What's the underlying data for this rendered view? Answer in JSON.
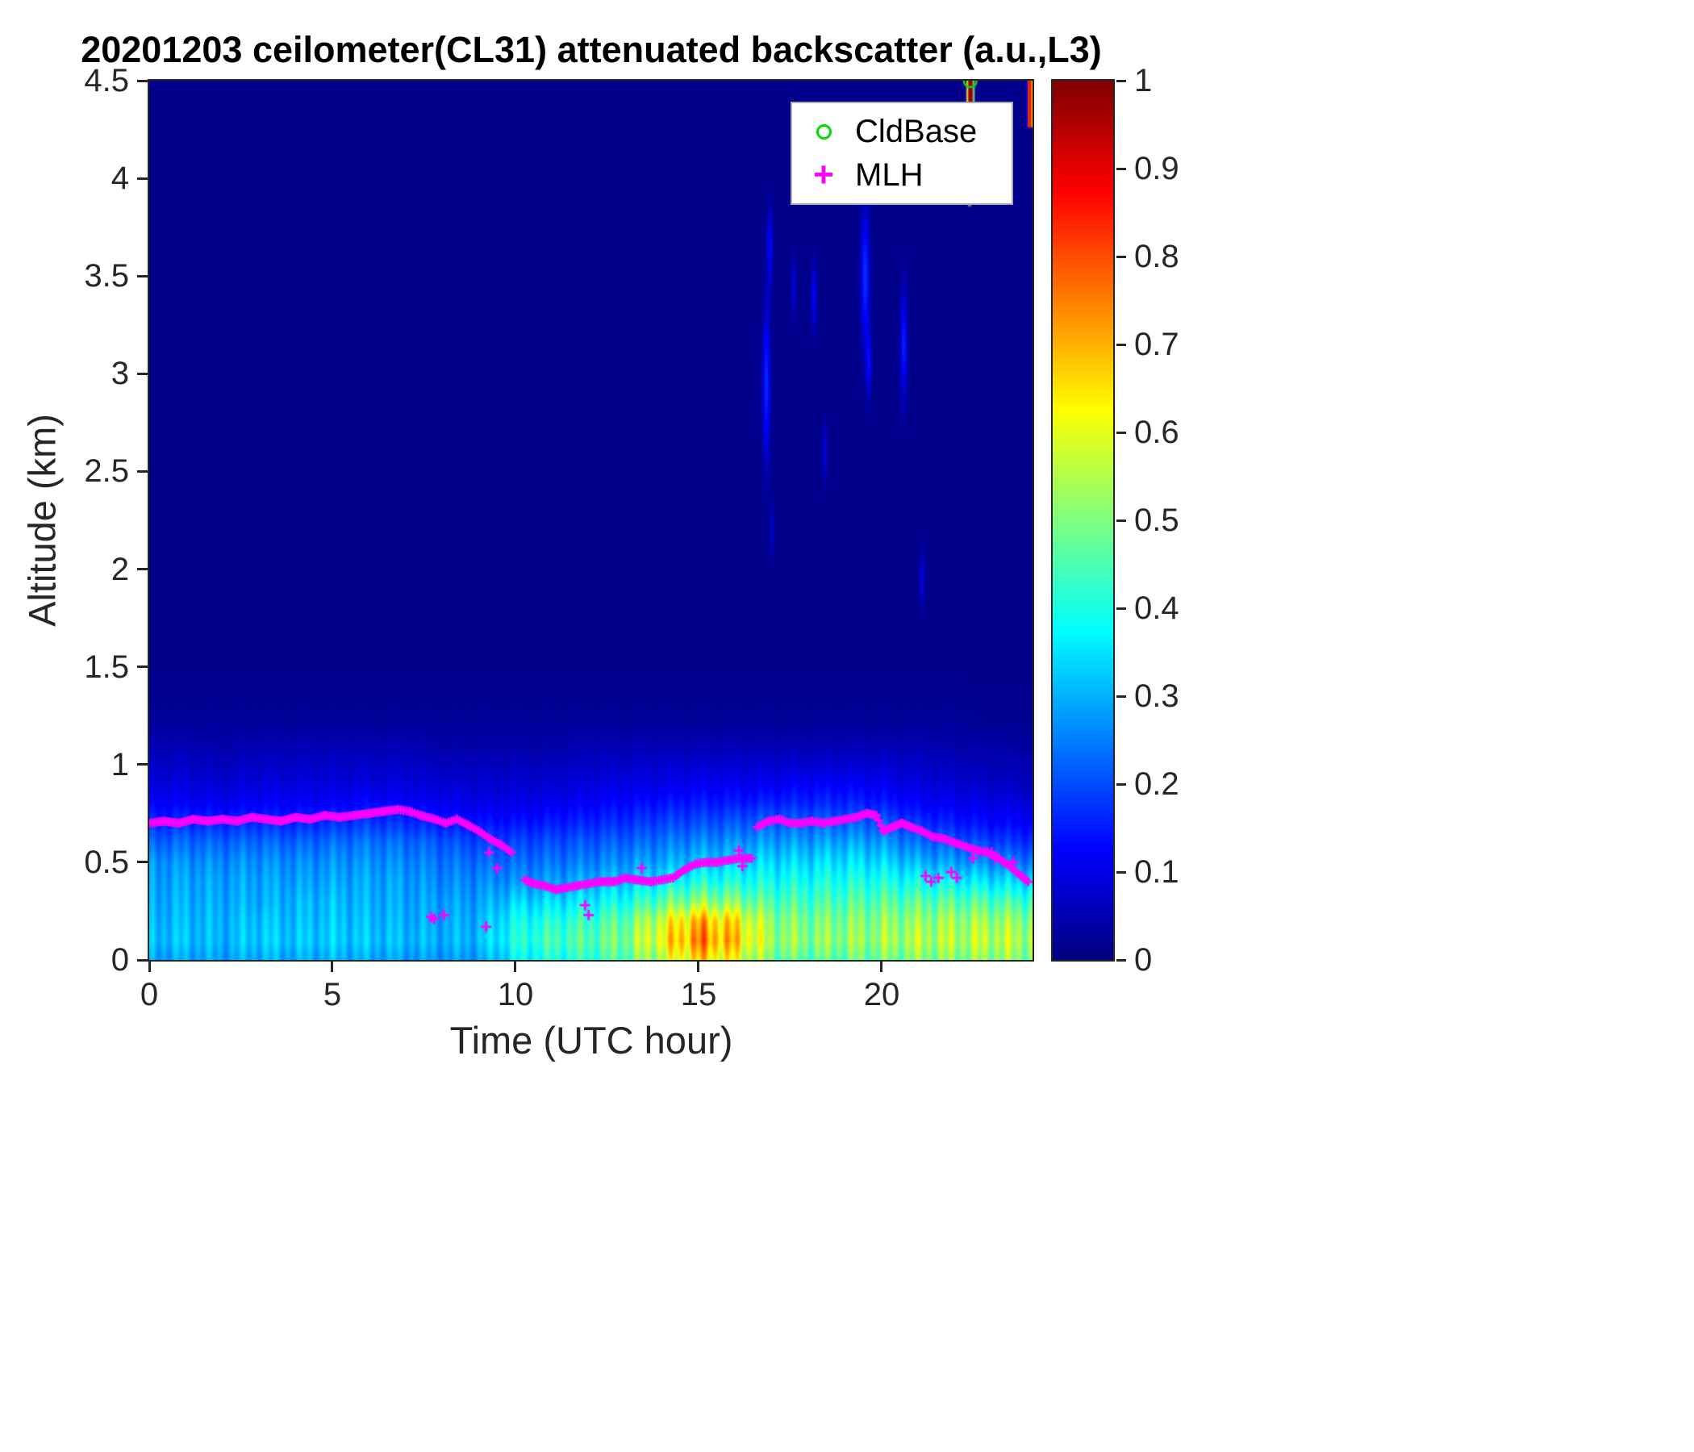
{
  "legend": {
    "items": [
      {
        "label": "CldBase",
        "marker": "circle",
        "color": "#00dd00"
      },
      {
        "label": "MLH",
        "marker": "plus",
        "glyph": "+",
        "color": "#ff00ff"
      }
    ]
  },
  "chart_data": {
    "type": "heatmap",
    "title": "20201203 ceilometer(CL31) attenuated backscatter (a.u.,L3)",
    "xlabel": "Time (UTC hour)",
    "ylabel": "Altitude (km)",
    "x_range": [
      0,
      24.12
    ],
    "y_range": [
      0,
      4.5
    ],
    "x_ticks": [
      0,
      5,
      10,
      15,
      20
    ],
    "y_ticks": [
      0,
      0.5,
      1,
      1.5,
      2,
      2.5,
      3,
      3.5,
      4,
      4.5
    ],
    "colorbar": {
      "range": [
        0,
        1
      ],
      "ticks": [
        0,
        0.1,
        0.2,
        0.3,
        0.4,
        0.5,
        0.6,
        0.7,
        0.8,
        0.9,
        1
      ],
      "colormap": "jet",
      "position": "right"
    },
    "background_value": 0.01,
    "boundary_layer": {
      "time_points": [
        0,
        1,
        2,
        3,
        4,
        5,
        6,
        7,
        8,
        9,
        10,
        11,
        12,
        13,
        14,
        15,
        16,
        17,
        18,
        19,
        20,
        21,
        22,
        23,
        24
      ],
      "alt_points": [
        0,
        0.1,
        0.2,
        0.3,
        0.4,
        0.5,
        0.6,
        0.7,
        0.8,
        0.9,
        1.0,
        1.1,
        1.2
      ],
      "values": [
        [
          0.28,
          0.31,
          0.3,
          0.29,
          0.28,
          0.27,
          0.22,
          0.16,
          0.12,
          0.09,
          0.07,
          0.05,
          0.03
        ],
        [
          0.29,
          0.32,
          0.31,
          0.3,
          0.29,
          0.27,
          0.23,
          0.17,
          0.12,
          0.09,
          0.07,
          0.05,
          0.03
        ],
        [
          0.28,
          0.3,
          0.3,
          0.29,
          0.28,
          0.26,
          0.22,
          0.16,
          0.11,
          0.08,
          0.06,
          0.04,
          0.03
        ],
        [
          0.3,
          0.33,
          0.32,
          0.3,
          0.29,
          0.27,
          0.23,
          0.17,
          0.12,
          0.09,
          0.07,
          0.05,
          0.03
        ],
        [
          0.29,
          0.32,
          0.31,
          0.3,
          0.28,
          0.26,
          0.22,
          0.16,
          0.12,
          0.09,
          0.07,
          0.05,
          0.03
        ],
        [
          0.3,
          0.33,
          0.32,
          0.31,
          0.29,
          0.27,
          0.23,
          0.17,
          0.12,
          0.09,
          0.07,
          0.05,
          0.03
        ],
        [
          0.29,
          0.32,
          0.31,
          0.3,
          0.29,
          0.27,
          0.24,
          0.18,
          0.13,
          0.09,
          0.07,
          0.05,
          0.03
        ],
        [
          0.28,
          0.31,
          0.3,
          0.29,
          0.28,
          0.26,
          0.23,
          0.17,
          0.12,
          0.09,
          0.07,
          0.05,
          0.03
        ],
        [
          0.27,
          0.3,
          0.29,
          0.28,
          0.26,
          0.24,
          0.21,
          0.15,
          0.11,
          0.08,
          0.06,
          0.04,
          0.03
        ],
        [
          0.28,
          0.31,
          0.3,
          0.28,
          0.26,
          0.23,
          0.19,
          0.14,
          0.1,
          0.08,
          0.06,
          0.04,
          0.03
        ],
        [
          0.36,
          0.4,
          0.38,
          0.33,
          0.27,
          0.23,
          0.19,
          0.14,
          0.1,
          0.08,
          0.06,
          0.04,
          0.03
        ],
        [
          0.4,
          0.44,
          0.41,
          0.34,
          0.28,
          0.24,
          0.2,
          0.15,
          0.11,
          0.08,
          0.06,
          0.04,
          0.03
        ],
        [
          0.42,
          0.46,
          0.43,
          0.36,
          0.3,
          0.25,
          0.21,
          0.16,
          0.12,
          0.09,
          0.07,
          0.05,
          0.03
        ],
        [
          0.46,
          0.5,
          0.47,
          0.39,
          0.32,
          0.27,
          0.22,
          0.17,
          0.13,
          0.1,
          0.07,
          0.05,
          0.03
        ],
        [
          0.55,
          0.62,
          0.58,
          0.46,
          0.36,
          0.29,
          0.24,
          0.19,
          0.14,
          0.1,
          0.08,
          0.05,
          0.03
        ],
        [
          0.66,
          0.75,
          0.7,
          0.52,
          0.4,
          0.32,
          0.26,
          0.2,
          0.15,
          0.11,
          0.08,
          0.05,
          0.03
        ],
        [
          0.6,
          0.68,
          0.64,
          0.5,
          0.4,
          0.33,
          0.27,
          0.21,
          0.15,
          0.11,
          0.08,
          0.05,
          0.03
        ],
        [
          0.48,
          0.53,
          0.51,
          0.45,
          0.39,
          0.34,
          0.28,
          0.22,
          0.16,
          0.11,
          0.08,
          0.05,
          0.03
        ],
        [
          0.46,
          0.51,
          0.49,
          0.44,
          0.39,
          0.34,
          0.28,
          0.22,
          0.16,
          0.12,
          0.08,
          0.05,
          0.03
        ],
        [
          0.47,
          0.52,
          0.5,
          0.45,
          0.4,
          0.35,
          0.29,
          0.22,
          0.16,
          0.12,
          0.08,
          0.05,
          0.03
        ],
        [
          0.48,
          0.53,
          0.51,
          0.46,
          0.4,
          0.34,
          0.28,
          0.21,
          0.15,
          0.11,
          0.08,
          0.05,
          0.03
        ],
        [
          0.5,
          0.55,
          0.52,
          0.46,
          0.38,
          0.3,
          0.23,
          0.17,
          0.12,
          0.09,
          0.07,
          0.05,
          0.03
        ],
        [
          0.5,
          0.55,
          0.53,
          0.46,
          0.37,
          0.28,
          0.21,
          0.15,
          0.11,
          0.08,
          0.06,
          0.04,
          0.03
        ],
        [
          0.52,
          0.56,
          0.53,
          0.45,
          0.35,
          0.26,
          0.19,
          0.13,
          0.1,
          0.07,
          0.05,
          0.04,
          0.02
        ],
        [
          0.5,
          0.54,
          0.51,
          0.43,
          0.33,
          0.24,
          0.17,
          0.12,
          0.09,
          0.06,
          0.05,
          0.03,
          0.02
        ]
      ]
    },
    "clouds": [
      {
        "t": 16.85,
        "alt": 2.95,
        "st": 0.07,
        "sa": 0.28,
        "v": 0.16
      },
      {
        "t": 16.95,
        "alt": 3.65,
        "st": 0.05,
        "sa": 0.14,
        "v": 0.13
      },
      {
        "t": 17.6,
        "alt": 3.45,
        "st": 0.04,
        "sa": 0.1,
        "v": 0.1
      },
      {
        "t": 18.15,
        "alt": 3.4,
        "st": 0.05,
        "sa": 0.12,
        "v": 0.12
      },
      {
        "t": 18.45,
        "alt": 2.6,
        "st": 0.04,
        "sa": 0.1,
        "v": 0.1
      },
      {
        "t": 19.55,
        "alt": 3.5,
        "st": 0.08,
        "sa": 0.24,
        "v": 0.17
      },
      {
        "t": 19.65,
        "alt": 3.05,
        "st": 0.05,
        "sa": 0.12,
        "v": 0.12
      },
      {
        "t": 20.6,
        "alt": 3.15,
        "st": 0.06,
        "sa": 0.2,
        "v": 0.15
      },
      {
        "t": 21.1,
        "alt": 1.95,
        "st": 0.05,
        "sa": 0.1,
        "v": 0.09
      },
      {
        "t": 17.0,
        "alt": 2.2,
        "st": 0.04,
        "sa": 0.09,
        "v": 0.08
      }
    ],
    "plumes": [
      {
        "t": 22.42,
        "t_halfwidth": 0.1,
        "alt_range": [
          4.18,
          4.5
        ],
        "v": 1.0
      },
      {
        "t": 22.42,
        "t_halfwidth": 0.04,
        "alt_range": [
          3.86,
          3.98
        ],
        "v": 0.8
      },
      {
        "t": 24.05,
        "t_halfwidth": 0.07,
        "alt_range": [
          4.26,
          4.5
        ],
        "v": 0.9
      }
    ],
    "cldbase_points": [
      [
        22.42,
        4.5
      ]
    ],
    "mlh_segments": [
      [
        [
          0,
          0.7
        ],
        [
          0.4,
          0.71
        ],
        [
          0.8,
          0.7
        ],
        [
          1.2,
          0.72
        ],
        [
          1.6,
          0.71
        ],
        [
          2.0,
          0.72
        ],
        [
          2.4,
          0.71
        ],
        [
          2.8,
          0.73
        ],
        [
          3.2,
          0.72
        ],
        [
          3.6,
          0.71
        ],
        [
          4.0,
          0.73
        ],
        [
          4.4,
          0.72
        ],
        [
          4.8,
          0.74
        ],
        [
          5.2,
          0.73
        ],
        [
          5.6,
          0.74
        ],
        [
          6.0,
          0.75
        ],
        [
          6.4,
          0.76
        ],
        [
          6.8,
          0.77
        ],
        [
          7.1,
          0.76
        ],
        [
          7.4,
          0.74
        ],
        [
          7.8,
          0.72
        ],
        [
          8.1,
          0.7
        ],
        [
          8.4,
          0.72
        ],
        [
          8.7,
          0.69
        ],
        [
          9.0,
          0.66
        ],
        [
          9.3,
          0.62
        ],
        [
          9.6,
          0.59
        ],
        [
          9.9,
          0.55
        ]
      ],
      [
        [
          10.25,
          0.41
        ],
        [
          10.5,
          0.39
        ],
        [
          10.8,
          0.38
        ],
        [
          11.1,
          0.36
        ],
        [
          11.4,
          0.37
        ],
        [
          11.7,
          0.38
        ],
        [
          12.0,
          0.39
        ],
        [
          12.3,
          0.4
        ],
        [
          12.7,
          0.4
        ],
        [
          13.0,
          0.42
        ],
        [
          13.3,
          0.41
        ],
        [
          13.7,
          0.4
        ],
        [
          14.0,
          0.41
        ],
        [
          14.3,
          0.42
        ],
        [
          14.6,
          0.46
        ],
        [
          14.9,
          0.49
        ],
        [
          15.2,
          0.5
        ],
        [
          15.5,
          0.5
        ],
        [
          15.8,
          0.51
        ],
        [
          16.1,
          0.52
        ],
        [
          16.45,
          0.52
        ]
      ],
      [
        [
          16.6,
          0.68
        ],
        [
          16.9,
          0.71
        ],
        [
          17.2,
          0.72
        ],
        [
          17.5,
          0.7
        ],
        [
          17.8,
          0.7
        ],
        [
          18.1,
          0.71
        ],
        [
          18.4,
          0.7
        ],
        [
          18.7,
          0.71
        ],
        [
          19.0,
          0.72
        ],
        [
          19.3,
          0.73
        ],
        [
          19.6,
          0.75
        ],
        [
          19.85,
          0.74
        ],
        [
          20.05,
          0.66
        ],
        [
          20.3,
          0.68
        ],
        [
          20.55,
          0.7
        ],
        [
          20.8,
          0.68
        ],
        [
          21.1,
          0.66
        ],
        [
          21.4,
          0.63
        ],
        [
          21.7,
          0.62
        ],
        [
          22.0,
          0.6
        ],
        [
          22.3,
          0.58
        ],
        [
          22.6,
          0.56
        ],
        [
          22.9,
          0.55
        ],
        [
          23.2,
          0.52
        ],
        [
          23.5,
          0.48
        ],
        [
          23.8,
          0.43
        ],
        [
          24.0,
          0.4
        ]
      ]
    ],
    "mlh_scatter": [
      [
        7.7,
        0.22
      ],
      [
        7.78,
        0.21
      ],
      [
        8.05,
        0.23
      ],
      [
        9.2,
        0.17
      ],
      [
        9.28,
        0.55
      ],
      [
        9.5,
        0.47
      ],
      [
        11.9,
        0.28
      ],
      [
        12.0,
        0.23
      ],
      [
        13.45,
        0.47
      ],
      [
        16.1,
        0.56
      ],
      [
        16.2,
        0.48
      ],
      [
        21.2,
        0.43
      ],
      [
        21.35,
        0.4
      ],
      [
        21.55,
        0.42
      ],
      [
        21.9,
        0.45
      ],
      [
        22.05,
        0.42
      ],
      [
        22.5,
        0.52
      ],
      [
        23.0,
        0.55
      ],
      [
        23.1,
        0.52
      ],
      [
        23.6,
        0.5
      ]
    ]
  }
}
